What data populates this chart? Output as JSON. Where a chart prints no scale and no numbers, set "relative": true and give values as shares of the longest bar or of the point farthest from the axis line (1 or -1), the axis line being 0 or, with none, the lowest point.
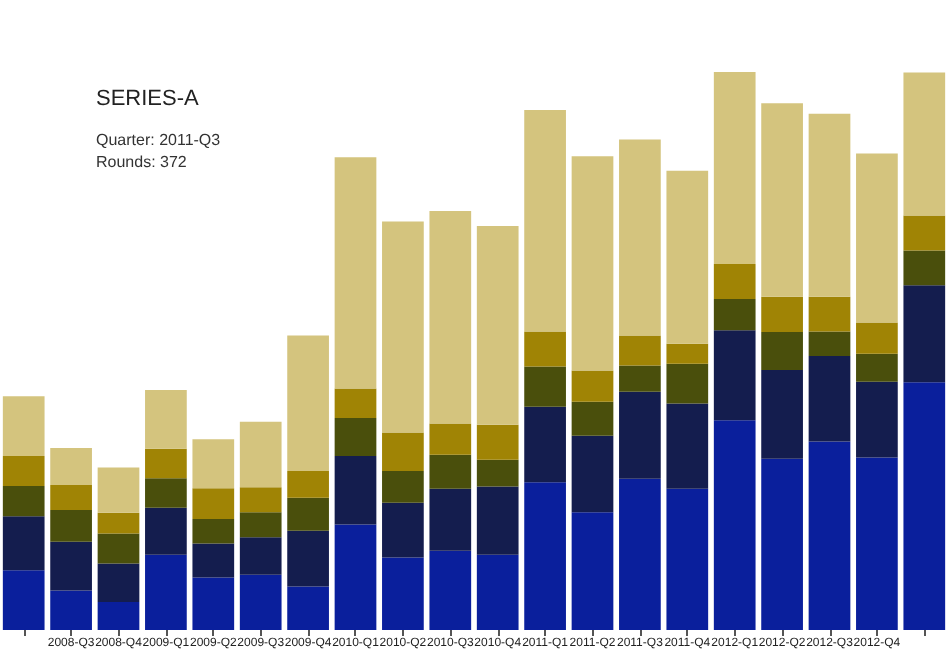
{
  "chart_data": {
    "type": "bar",
    "stacked": true,
    "relative": true,
    "categories": [
      null,
      "2008-Q3",
      "2008-Q4",
      "2009-Q1",
      "2009-Q2",
      "2009-Q3",
      "2009-Q4",
      "2010-Q1",
      "2010-Q2",
      "2010-Q3",
      "2010-Q4",
      "2011-Q1",
      "2011-Q2",
      "2011-Q3",
      "2011-Q4",
      "2012-Q1",
      "2012-Q2",
      "2012-Q3",
      "2012-Q4",
      null
    ],
    "series": [
      {
        "color": "#0a1f9c",
        "values": [
          0.107,
          0.071,
          0.05,
          0.135,
          0.094,
          0.099,
          0.078,
          0.189,
          0.13,
          0.142,
          0.135,
          0.265,
          0.211,
          0.271,
          0.253,
          0.376,
          0.307,
          0.338,
          0.309,
          0.444
        ]
      },
      {
        "color": "#141d4e",
        "values": [
          0.097,
          0.087,
          0.069,
          0.084,
          0.061,
          0.067,
          0.1,
          0.123,
          0.098,
          0.111,
          0.122,
          0.135,
          0.137,
          0.156,
          0.153,
          0.161,
          0.159,
          0.153,
          0.136,
          0.174
        ]
      },
      {
        "color": "#4a4f0c",
        "values": [
          0.054,
          0.057,
          0.054,
          0.053,
          0.044,
          0.045,
          0.059,
          0.068,
          0.057,
          0.061,
          0.048,
          0.072,
          0.061,
          0.047,
          0.071,
          0.056,
          0.068,
          0.044,
          0.05,
          0.062
        ]
      },
      {
        "color": "#a08405",
        "values": [
          0.054,
          0.045,
          0.037,
          0.053,
          0.055,
          0.045,
          0.048,
          0.053,
          0.069,
          0.056,
          0.063,
          0.063,
          0.056,
          0.054,
          0.036,
          0.063,
          0.063,
          0.062,
          0.056,
          0.063
        ]
      },
      {
        "color": "#d4c47e",
        "values": [
          0.107,
          0.066,
          0.081,
          0.105,
          0.088,
          0.117,
          0.243,
          0.414,
          0.378,
          0.381,
          0.356,
          0.397,
          0.384,
          0.351,
          0.31,
          0.344,
          0.347,
          0.328,
          0.303,
          0.256
        ]
      }
    ],
    "annotations": [
      "SERIES-A",
      "Quarter: 2011-Q3",
      "Rounds: 372"
    ]
  }
}
